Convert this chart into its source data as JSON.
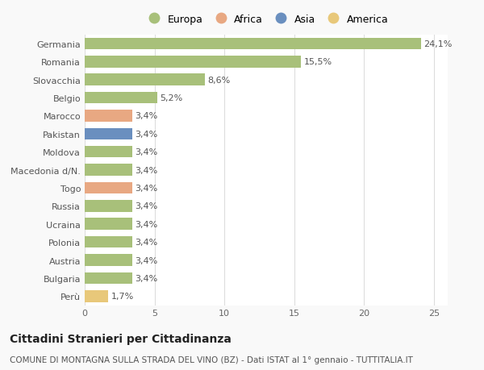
{
  "categories": [
    "Germania",
    "Romania",
    "Slovacchia",
    "Belgio",
    "Marocco",
    "Pakistan",
    "Moldova",
    "Macedonia d/N.",
    "Togo",
    "Russia",
    "Ucraina",
    "Polonia",
    "Austria",
    "Bulgaria",
    "Perù"
  ],
  "values": [
    24.1,
    15.5,
    8.6,
    5.2,
    3.4,
    3.4,
    3.4,
    3.4,
    3.4,
    3.4,
    3.4,
    3.4,
    3.4,
    3.4,
    1.7
  ],
  "labels": [
    "24,1%",
    "15,5%",
    "8,6%",
    "5,2%",
    "3,4%",
    "3,4%",
    "3,4%",
    "3,4%",
    "3,4%",
    "3,4%",
    "3,4%",
    "3,4%",
    "3,4%",
    "3,4%",
    "1,7%"
  ],
  "colors": [
    "#a8c07a",
    "#a8c07a",
    "#a8c07a",
    "#a8c07a",
    "#e8a882",
    "#6a8fbf",
    "#a8c07a",
    "#a8c07a",
    "#e8a882",
    "#a8c07a",
    "#a8c07a",
    "#a8c07a",
    "#a8c07a",
    "#a8c07a",
    "#e8c87a"
  ],
  "legend_labels": [
    "Europa",
    "Africa",
    "Asia",
    "America"
  ],
  "legend_colors": [
    "#a8c07a",
    "#e8a882",
    "#6a8fbf",
    "#e8c87a"
  ],
  "title": "Cittadini Stranieri per Cittadinanza",
  "subtitle": "COMUNE DI MONTAGNA SULLA STRADA DEL VINO (BZ) - Dati ISTAT al 1° gennaio - TUTTITALIA.IT",
  "xlim": [
    0,
    26
  ],
  "xticks": [
    0,
    5,
    10,
    15,
    20,
    25
  ],
  "background_color": "#f9f9f9",
  "bar_background": "#ffffff",
  "grid_color": "#dddddd",
  "title_fontsize": 10,
  "subtitle_fontsize": 7.5,
  "tick_fontsize": 8,
  "label_fontsize": 8
}
